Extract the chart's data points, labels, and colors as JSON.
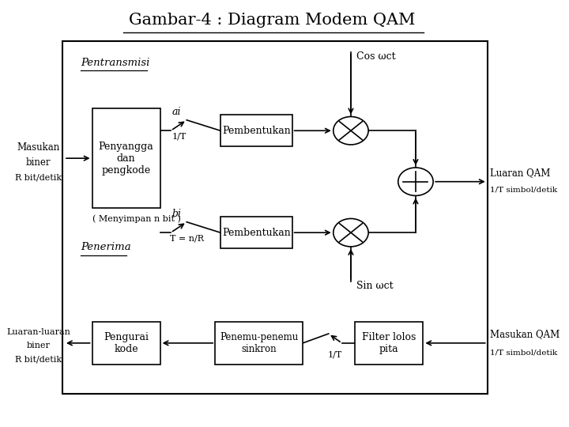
{
  "title": "Gambar-4 : Diagram Modem QAM",
  "bg_color": "#ffffff",
  "transmitter_label": "Pentransmisi",
  "receiver_label": "Penerima",
  "penyangga_label": "Penyangga\ndan\npengkode",
  "pembentukan_label": "Pembentukan",
  "pengurai_label": "Pengurai\nkode",
  "penemu_label": "Penemu-penemu\nsinkron",
  "filter_label": "Filter lolos\npita",
  "cos_label": "Cos ωct",
  "sin_label": "Sin ωct",
  "ai_label": "ai",
  "one_T_top": "1/T",
  "bi_label": "bi",
  "T_eq_label": "T = n/R",
  "menyimpan_label": "( Menyimpan n bit )",
  "masukan_biner_line1": "Masukan",
  "masukan_biner_line2": "biner",
  "R_bit_tx": "R bit/detik",
  "luaran_QAM": "Luaran QAM",
  "simbol_tx": "1/T simbol/detik",
  "luaran_luaran_line1": "Luaran-luaran",
  "luaran_luaran_line2": "biner",
  "R_bit_rx": "R bit/detik",
  "masukan_QAM": "Masukan QAM",
  "simbol_rx": "1/T simbol/detik",
  "one_T_rx": "1/T"
}
